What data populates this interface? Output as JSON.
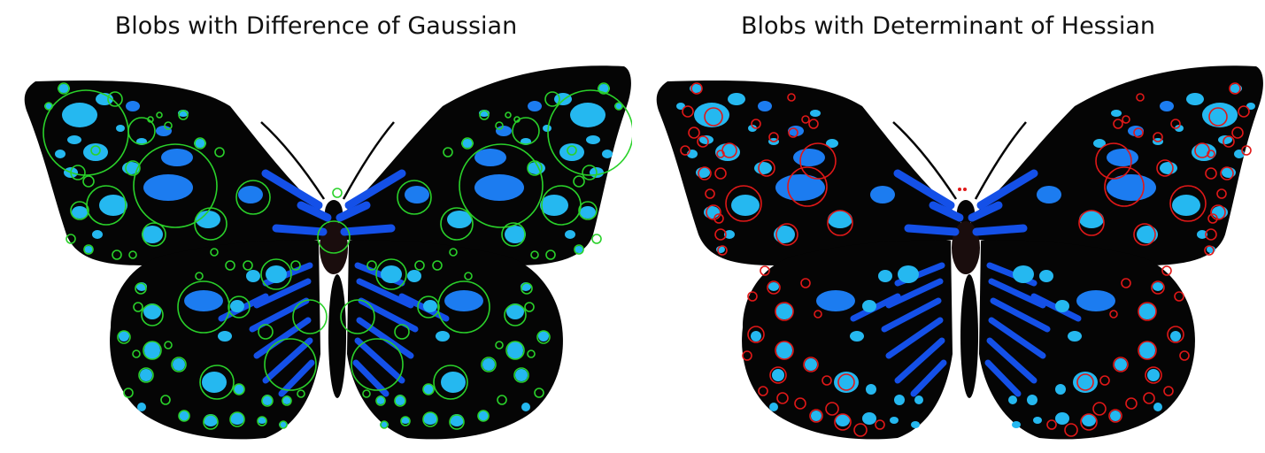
{
  "panels": [
    {
      "title": "Blobs with Difference of Gaussian",
      "method": "difference-of-gaussian",
      "circle_color": "#2ad12a"
    },
    {
      "title": "Blobs with Determinant of Hessian",
      "method": "determinant-of-hessian",
      "circle_color": "#e01818"
    }
  ],
  "image": {
    "subject": "butterfly",
    "wing_color": "#050505",
    "spot_light_color": "#25b8f0",
    "spot_mid_color": "#1c7cf0",
    "stripe_color": "#1450e8",
    "background": "#ffffff"
  }
}
